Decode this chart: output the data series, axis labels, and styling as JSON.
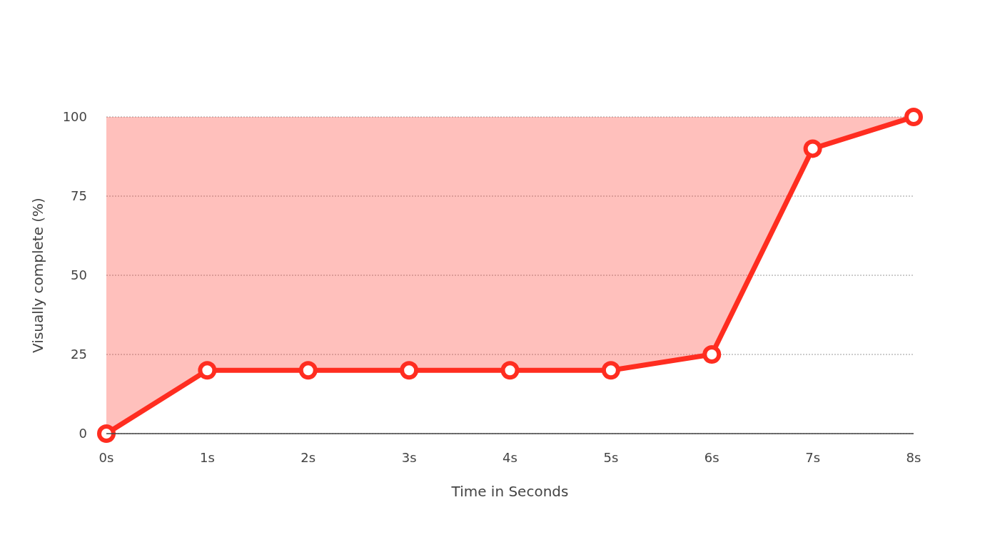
{
  "chart_data": {
    "type": "line",
    "xlabel": "Time in Seconds",
    "ylabel": "Visually complete (%)",
    "x": [
      0,
      1,
      2,
      3,
      4,
      5,
      6,
      7,
      8
    ],
    "series": [
      {
        "color": "#ff2d20",
        "values": [
          0,
          20,
          20,
          20,
          20,
          20,
          25,
          90,
          100
        ],
        "lower": [
          0,
          20,
          20,
          20,
          20,
          20,
          25,
          90,
          100
        ],
        "upper": [
          100,
          100,
          100,
          100,
          100,
          100,
          100,
          100,
          100
        ]
      }
    ],
    "xlim": [
      0,
      8
    ],
    "xticks": [
      {
        "value": 0,
        "label": "0s"
      },
      {
        "value": 1,
        "label": "1s"
      },
      {
        "value": 2,
        "label": "2s"
      },
      {
        "value": 3,
        "label": "3s"
      },
      {
        "value": 4,
        "label": "4s"
      },
      {
        "value": 5,
        "label": "5s"
      },
      {
        "value": 6,
        "label": "6s"
      },
      {
        "value": 7,
        "label": "7s"
      },
      {
        "value": 8,
        "label": "8s"
      }
    ],
    "ylim": [
      0,
      100
    ],
    "yticks": [
      0,
      25,
      50,
      75,
      100
    ],
    "grid": "y",
    "marker": "circle",
    "line_style": "solid"
  }
}
